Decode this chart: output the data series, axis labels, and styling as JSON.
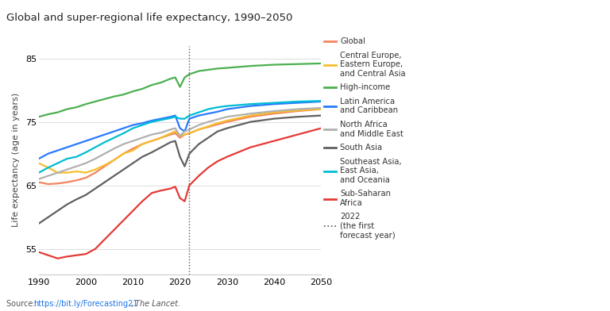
{
  "title": "Global and super-regional life expectancy, 1990–2050",
  "ylabel": "Life expectancy (age in years)",
  "xlim": [
    1990,
    2050
  ],
  "ylim": [
    51,
    87
  ],
  "yticks": [
    55,
    65,
    75,
    85
  ],
  "xticks": [
    1990,
    2000,
    2010,
    2020,
    2030,
    2040,
    2050
  ],
  "forecast_year": 2022,
  "background_color": "#ffffff",
  "series": {
    "Global": {
      "color": "#F4845F",
      "points": [
        [
          1990,
          65.5
        ],
        [
          1992,
          65.2
        ],
        [
          1994,
          65.3
        ],
        [
          1996,
          65.5
        ],
        [
          1998,
          65.8
        ],
        [
          2000,
          66.2
        ],
        [
          2002,
          67.0
        ],
        [
          2004,
          68.0
        ],
        [
          2006,
          69.0
        ],
        [
          2008,
          70.0
        ],
        [
          2010,
          70.8
        ],
        [
          2012,
          71.5
        ],
        [
          2014,
          72.0
        ],
        [
          2016,
          72.5
        ],
        [
          2018,
          73.0
        ],
        [
          2019,
          73.2
        ],
        [
          2020,
          72.5
        ],
        [
          2021,
          73.0
        ],
        [
          2022,
          73.2
        ],
        [
          2024,
          73.8
        ],
        [
          2026,
          74.2
        ],
        [
          2028,
          74.6
        ],
        [
          2030,
          75.0
        ],
        [
          2035,
          75.8
        ],
        [
          2040,
          76.3
        ],
        [
          2045,
          76.7
        ],
        [
          2050,
          77.0
        ]
      ]
    },
    "Central Europe, Eastern Europe,\nand Central Asia": {
      "color": "#F5BE2E",
      "points": [
        [
          1990,
          68.5
        ],
        [
          1992,
          67.8
        ],
        [
          1994,
          67.0
        ],
        [
          1996,
          67.0
        ],
        [
          1998,
          67.2
        ],
        [
          2000,
          67.0
        ],
        [
          2002,
          67.5
        ],
        [
          2004,
          68.2
        ],
        [
          2006,
          69.0
        ],
        [
          2008,
          70.0
        ],
        [
          2010,
          70.5
        ],
        [
          2012,
          71.5
        ],
        [
          2014,
          72.0
        ],
        [
          2016,
          72.5
        ],
        [
          2018,
          73.2
        ],
        [
          2019,
          73.5
        ],
        [
          2020,
          72.8
        ],
        [
          2021,
          73.0
        ],
        [
          2022,
          73.2
        ],
        [
          2024,
          73.8
        ],
        [
          2026,
          74.3
        ],
        [
          2028,
          74.8
        ],
        [
          2030,
          75.2
        ],
        [
          2035,
          76.0
        ],
        [
          2040,
          76.5
        ],
        [
          2045,
          76.8
        ],
        [
          2050,
          77.0
        ]
      ]
    },
    "High-income": {
      "color": "#4CAF50",
      "points": [
        [
          1990,
          75.8
        ],
        [
          1992,
          76.2
        ],
        [
          1994,
          76.5
        ],
        [
          1996,
          77.0
        ],
        [
          1998,
          77.3
        ],
        [
          2000,
          77.8
        ],
        [
          2002,
          78.2
        ],
        [
          2004,
          78.6
        ],
        [
          2006,
          79.0
        ],
        [
          2008,
          79.3
        ],
        [
          2010,
          79.8
        ],
        [
          2012,
          80.2
        ],
        [
          2014,
          80.8
        ],
        [
          2016,
          81.2
        ],
        [
          2018,
          81.8
        ],
        [
          2019,
          82.0
        ],
        [
          2020,
          80.5
        ],
        [
          2021,
          82.0
        ],
        [
          2022,
          82.5
        ],
        [
          2024,
          83.0
        ],
        [
          2026,
          83.2
        ],
        [
          2028,
          83.4
        ],
        [
          2030,
          83.5
        ],
        [
          2035,
          83.8
        ],
        [
          2040,
          84.0
        ],
        [
          2045,
          84.1
        ],
        [
          2050,
          84.2
        ]
      ]
    },
    "Latin America and Caribbean": {
      "color": "#2979FF",
      "points": [
        [
          1990,
          69.2
        ],
        [
          1992,
          70.0
        ],
        [
          1994,
          70.5
        ],
        [
          1996,
          71.0
        ],
        [
          1998,
          71.5
        ],
        [
          2000,
          72.0
        ],
        [
          2002,
          72.5
        ],
        [
          2004,
          73.0
        ],
        [
          2006,
          73.5
        ],
        [
          2008,
          74.0
        ],
        [
          2010,
          74.5
        ],
        [
          2012,
          74.8
        ],
        [
          2014,
          75.2
        ],
        [
          2016,
          75.5
        ],
        [
          2018,
          75.8
        ],
        [
          2019,
          76.0
        ],
        [
          2020,
          74.0
        ],
        [
          2021,
          73.5
        ],
        [
          2022,
          75.5
        ],
        [
          2024,
          76.0
        ],
        [
          2026,
          76.3
        ],
        [
          2028,
          76.6
        ],
        [
          2030,
          77.0
        ],
        [
          2035,
          77.5
        ],
        [
          2040,
          77.8
        ],
        [
          2045,
          78.0
        ],
        [
          2050,
          78.2
        ]
      ]
    },
    "North Africa and Middle East": {
      "color": "#B0B0B0",
      "points": [
        [
          1990,
          66.0
        ],
        [
          1992,
          66.5
        ],
        [
          1994,
          67.0
        ],
        [
          1996,
          67.5
        ],
        [
          1998,
          68.0
        ],
        [
          2000,
          68.5
        ],
        [
          2002,
          69.2
        ],
        [
          2004,
          70.0
        ],
        [
          2006,
          70.8
        ],
        [
          2008,
          71.5
        ],
        [
          2010,
          72.0
        ],
        [
          2012,
          72.5
        ],
        [
          2014,
          73.0
        ],
        [
          2016,
          73.3
        ],
        [
          2018,
          73.8
        ],
        [
          2019,
          74.0
        ],
        [
          2020,
          72.8
        ],
        [
          2021,
          73.5
        ],
        [
          2022,
          73.8
        ],
        [
          2024,
          74.5
        ],
        [
          2026,
          75.0
        ],
        [
          2028,
          75.4
        ],
        [
          2030,
          75.8
        ],
        [
          2035,
          76.3
        ],
        [
          2040,
          76.7
        ],
        [
          2045,
          77.0
        ],
        [
          2050,
          77.2
        ]
      ]
    },
    "South Asia": {
      "color": "#606060",
      "points": [
        [
          1990,
          59.0
        ],
        [
          1992,
          60.0
        ],
        [
          1994,
          61.0
        ],
        [
          1996,
          62.0
        ],
        [
          1998,
          62.8
        ],
        [
          2000,
          63.5
        ],
        [
          2002,
          64.5
        ],
        [
          2004,
          65.5
        ],
        [
          2006,
          66.5
        ],
        [
          2008,
          67.5
        ],
        [
          2010,
          68.5
        ],
        [
          2012,
          69.5
        ],
        [
          2014,
          70.2
        ],
        [
          2016,
          71.0
        ],
        [
          2018,
          71.8
        ],
        [
          2019,
          72.0
        ],
        [
          2020,
          69.5
        ],
        [
          2021,
          68.0
        ],
        [
          2022,
          70.0
        ],
        [
          2024,
          71.5
        ],
        [
          2026,
          72.5
        ],
        [
          2028,
          73.5
        ],
        [
          2030,
          74.0
        ],
        [
          2035,
          75.0
        ],
        [
          2040,
          75.5
        ],
        [
          2045,
          75.8
        ],
        [
          2050,
          76.0
        ]
      ]
    },
    "Southeast Asia, East Asia,\nand Oceania": {
      "color": "#00BCD4",
      "points": [
        [
          1990,
          67.0
        ],
        [
          1992,
          67.8
        ],
        [
          1994,
          68.5
        ],
        [
          1996,
          69.2
        ],
        [
          1998,
          69.5
        ],
        [
          2000,
          70.2
        ],
        [
          2002,
          71.0
        ],
        [
          2004,
          71.8
        ],
        [
          2006,
          72.5
        ],
        [
          2008,
          73.2
        ],
        [
          2010,
          74.0
        ],
        [
          2012,
          74.5
        ],
        [
          2014,
          75.0
        ],
        [
          2016,
          75.3
        ],
        [
          2018,
          75.6
        ],
        [
          2019,
          75.8
        ],
        [
          2020,
          75.5
        ],
        [
          2021,
          75.5
        ],
        [
          2022,
          76.0
        ],
        [
          2024,
          76.5
        ],
        [
          2026,
          77.0
        ],
        [
          2028,
          77.3
        ],
        [
          2030,
          77.5
        ],
        [
          2035,
          77.8
        ],
        [
          2040,
          78.0
        ],
        [
          2045,
          78.2
        ],
        [
          2050,
          78.3
        ]
      ]
    },
    "Sub-Saharan Africa": {
      "color": "#E53935",
      "points": [
        [
          1990,
          54.5
        ],
        [
          1992,
          54.0
        ],
        [
          1994,
          53.5
        ],
        [
          1996,
          53.8
        ],
        [
          1998,
          54.0
        ],
        [
          2000,
          54.2
        ],
        [
          2002,
          55.0
        ],
        [
          2004,
          56.5
        ],
        [
          2006,
          58.0
        ],
        [
          2008,
          59.5
        ],
        [
          2010,
          61.0
        ],
        [
          2012,
          62.5
        ],
        [
          2014,
          63.8
        ],
        [
          2016,
          64.2
        ],
        [
          2018,
          64.5
        ],
        [
          2019,
          64.8
        ],
        [
          2020,
          63.0
        ],
        [
          2021,
          62.5
        ],
        [
          2022,
          65.0
        ],
        [
          2024,
          66.5
        ],
        [
          2026,
          67.8
        ],
        [
          2028,
          68.8
        ],
        [
          2030,
          69.5
        ],
        [
          2035,
          71.0
        ],
        [
          2040,
          72.0
        ],
        [
          2045,
          73.0
        ],
        [
          2050,
          74.0
        ]
      ]
    }
  },
  "legend_entries": [
    {
      "label": "Global",
      "color": "#F4845F"
    },
    {
      "label": "Central Europe,\nEastern Europe,\nand Central Asia",
      "color": "#F5BE2E"
    },
    {
      "label": "High-income",
      "color": "#4CAF50"
    },
    {
      "label": "Latin America\nand Caribbean",
      "color": "#2979FF"
    },
    {
      "label": "North Africa\nand Middle East",
      "color": "#B0B0B0"
    },
    {
      "label": "South Asia",
      "color": "#606060"
    },
    {
      "label": "Southeast Asia,\nEast Asia,\nand Oceania",
      "color": "#00BCD4"
    },
    {
      "label": "Sub-Saharan\nAfrica",
      "color": "#E53935"
    },
    {
      "label": "2022\n(the first\nforecast year)",
      "color": "#555555",
      "dotted": true
    }
  ]
}
